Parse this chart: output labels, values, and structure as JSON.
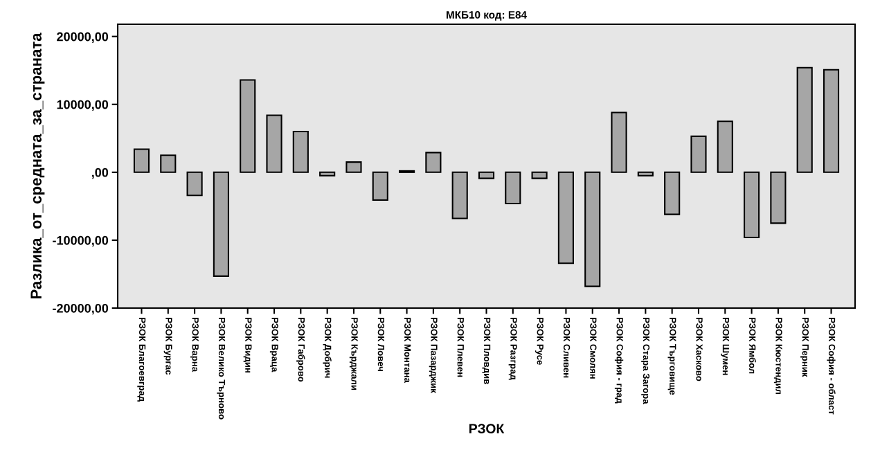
{
  "chart_data": {
    "type": "bar",
    "title": "МКБ10 код: E84",
    "xlabel": "РЗОК",
    "ylabel": "Разлика_от_средната_за_страната",
    "categories": [
      "РЗОК Благоевград",
      "РЗОК Бургас",
      "РЗОК Варна",
      "РЗОК Велико Търново",
      "РЗОК Видин",
      "РЗОК Враца",
      "РЗОК Габрово",
      "РЗОК Добрич",
      "РЗОК Кърджали",
      "РЗОК Ловеч",
      "РЗОК Монтана",
      "РЗОК Пазарджик",
      "РЗОК Плевен",
      "РЗОК Пловдив",
      "РЗОК Разград",
      "РЗОК Русе",
      "РЗОК Сливен",
      "РЗОК Смолян",
      "РЗОК София - град",
      "РЗОК Стара Загора",
      "РЗОК Търговище",
      "РЗОК Хасково",
      "РЗОК Шумен",
      "РЗОК Ямбол",
      "РЗОК Кюстендил",
      "РЗОК Перник",
      "РЗОК София - област"
    ],
    "values": [
      3400,
      2500,
      -3400,
      -15300,
      13600,
      8400,
      6000,
      -500,
      1500,
      -4100,
      200,
      2900,
      -6800,
      -900,
      -4600,
      -900,
      -13400,
      -16800,
      8800,
      -500,
      -6200,
      5300,
      7500,
      -9600,
      -7500,
      15400,
      15100
    ],
    "color": "#a6a6a6",
    "ylim": [
      -20000,
      21800
    ],
    "yticks": [
      {
        "value": -20000,
        "label": "-20000,00"
      },
      {
        "value": -10000,
        "label": "-10000,00"
      },
      {
        "value": 0,
        "label": ",00"
      },
      {
        "value": 10000,
        "label": "10000,00"
      },
      {
        "value": 20000,
        "label": "20000,00"
      }
    ],
    "grid": false,
    "legend": false
  }
}
